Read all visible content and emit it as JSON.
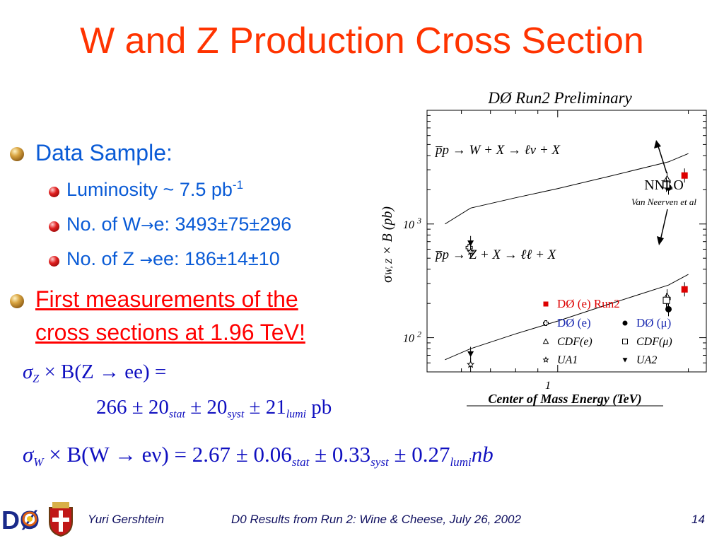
{
  "title": "W and Z Production Cross Section",
  "bullets": {
    "data_sample": "Data Sample:",
    "luminosity": "Luminosity  ~ 7.5 pb",
    "luminosity_sup": "-1",
    "w_events_prefix": "No. of W",
    "w_events_suffix": "e: 3493±75±296",
    "z_events_prefix": "No. of Z ",
    "z_events_suffix": "ee: 186±14±10",
    "first_measurements_line1": "First measurements of the",
    "first_measurements_line2": "cross sections at 1.96 TeV!"
  },
  "equations": {
    "z_lhs_sigma": "σ",
    "z_lhs_sub": "Z",
    "z_lhs_rest": " × B(Z → ee) =",
    "z_value": "266",
    "z_stat_err": " ± 20",
    "z_stat_label": "stat",
    "z_syst_err": " ± 20",
    "z_syst_label": "syst",
    "z_lumi_err": " ± 21",
    "z_lumi_label": "lumi",
    "z_unit": " pb",
    "w_lhs_sigma": "σ",
    "w_lhs_sub": "W",
    "w_lhs_rest": " × B(W → eν) = 2.67 ± 0.06",
    "w_stat_label": "stat",
    "w_syst_err": " ± 0.33",
    "w_syst_label": "syst",
    "w_lumi_err": " ± 0.27",
    "w_lumi_label": "lumi",
    "w_unit": "nb"
  },
  "chart_data": {
    "type": "scatter",
    "title": "DØ Run2 Preliminary",
    "xlabel": "Center of Mass Energy (TeV)",
    "ylabel": "σW, Z × B (pb)",
    "ylabel_sigma": "σ",
    "ylabel_sub": "W, Z",
    "ylabel_rest": " × B (pb)",
    "x_scale": "log",
    "y_scale": "log",
    "xlim": [
      0.5,
      2.2
    ],
    "ylim": [
      50,
      10000
    ],
    "x_tick_label": "1",
    "y_tick_labels": [
      {
        "value": 1000,
        "label": "10",
        "exp": "3"
      },
      {
        "value": 100,
        "label": "10",
        "exp": "2"
      }
    ],
    "process_labels": {
      "w": "p̅p → W + X → ℓν + X",
      "z": "p̅p → Z + X → ℓℓ + X"
    },
    "annotation": {
      "line1": "NNLO",
      "line2": "Van Neerven et al"
    },
    "theory_curves": [
      {
        "name": "W",
        "x": [
          0.55,
          0.63,
          0.8,
          1.0,
          1.3,
          1.8,
          2.0
        ],
        "y": [
          1000,
          1380,
          1700,
          2050,
          2600,
          3520,
          4160
        ]
      },
      {
        "name": "Z",
        "x": [
          0.55,
          0.63,
          0.8,
          1.0,
          1.3,
          1.8,
          2.0
        ],
        "y": [
          64,
          80,
          108,
          140,
          195,
          290,
          360
        ]
      }
    ],
    "series": [
      {
        "name": "DØ (e) Run2",
        "marker": "square-filled",
        "color": "#dd0000",
        "points": [
          {
            "x": 1.96,
            "y": 2670
          },
          {
            "x": 1.96,
            "y": 266
          }
        ]
      },
      {
        "name": "DØ (e)",
        "marker": "cross-open",
        "color": "#000000",
        "points": [
          {
            "x": 1.8,
            "y": 2360
          },
          {
            "x": 0.63,
            "y": 620
          },
          {
            "x": 1.8,
            "y": 221
          }
        ]
      },
      {
        "name": "DØ (μ)",
        "marker": "circle-filled",
        "color": "#000000",
        "points": [
          {
            "x": 1.8,
            "y": 2090
          },
          {
            "x": 1.8,
            "y": 178
          }
        ]
      },
      {
        "name": "CDF(e)",
        "marker": "triangle-open",
        "color": "#000000",
        "points": [
          {
            "x": 1.8,
            "y": 2490
          },
          {
            "x": 1.8,
            "y": 231
          }
        ]
      },
      {
        "name": "CDF(μ)",
        "marker": "square-open",
        "color": "#000000",
        "points": [
          {
            "x": 1.8,
            "y": 2210
          },
          {
            "x": 1.8,
            "y": 213
          }
        ]
      },
      {
        "name": "UA1",
        "marker": "star-open",
        "color": "#000000",
        "points": [
          {
            "x": 0.63,
            "y": 570
          },
          {
            "x": 0.63,
            "y": 58
          }
        ]
      },
      {
        "name": "UA2",
        "marker": "triangle-down-filled",
        "color": "#000000",
        "points": [
          {
            "x": 0.63,
            "y": 680
          },
          {
            "x": 0.63,
            "y": 72
          }
        ]
      }
    ],
    "legend_placement": "bottom-right"
  },
  "footer": {
    "author": "Yuri Gershtein",
    "talk": "D0 Results from Run 2: Wine & Cheese, July 26, 2002",
    "page": "14"
  },
  "logos": {
    "d0_logo": "DØ",
    "crest_icon": "university-crest-icon"
  },
  "colors": {
    "title": "#ff3300",
    "bullet_text": "#0a5bd6",
    "highlight": "#ff0000",
    "equation": "#1010c0",
    "d0_marker": "#dd0000"
  }
}
